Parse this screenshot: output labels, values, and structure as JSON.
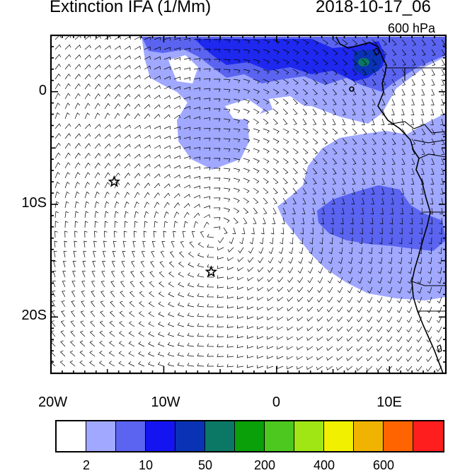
{
  "header": {
    "title": "Extinction IFA (1/Mm)",
    "datetime": "2018-10-17_06",
    "level": "600 hPa"
  },
  "map": {
    "lon_range": [
      -20,
      15
    ],
    "lat_range": [
      -25,
      5
    ],
    "lat_ticks": [
      {
        "value": 0,
        "label": "0"
      },
      {
        "value": -10,
        "label": "10S"
      },
      {
        "value": -20,
        "label": "20S"
      }
    ],
    "lon_ticks": [
      {
        "value": -20,
        "label": "20W"
      },
      {
        "value": -10,
        "label": "10W"
      },
      {
        "value": 0,
        "label": "0"
      },
      {
        "value": 10,
        "label": "10E"
      }
    ],
    "stars": [
      {
        "lon": -14.4,
        "lat": -8.0
      },
      {
        "lon": -5.8,
        "lat": -16.0
      }
    ],
    "colors": {
      "light_blue": "#a0a8ff",
      "medium_blue": "#5a64f0",
      "blue": "#1e28ee",
      "dark_blue": "#0a32b4",
      "teal": "#0a7864"
    }
  },
  "colorbar": {
    "colors": [
      "#ffffff",
      "#a0a8ff",
      "#5a64f0",
      "#1414f0",
      "#0a32b4",
      "#0a7864",
      "#0aa00a",
      "#4cc81e",
      "#a0e614",
      "#f0f000",
      "#f0b400",
      "#ff6400",
      "#ff1e1e"
    ],
    "labels": [
      {
        "text": "2",
        "boundary": 1
      },
      {
        "text": "10",
        "boundary": 3
      },
      {
        "text": "50",
        "boundary": 5
      },
      {
        "text": "200",
        "boundary": 7
      },
      {
        "text": "400",
        "boundary": 9
      },
      {
        "text": "600",
        "boundary": 11
      }
    ]
  }
}
